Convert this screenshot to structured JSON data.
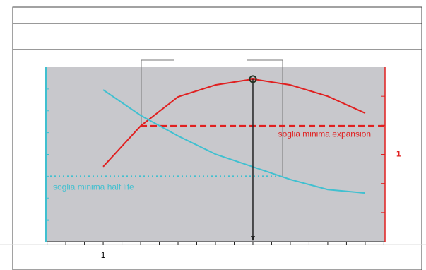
{
  "chart_data": {
    "type": "line",
    "x": [
      1,
      2,
      3,
      4,
      5,
      6,
      7,
      8
    ],
    "xlim": [
      -0.53,
      8.53
    ],
    "xticks": [
      {
        "value": 1,
        "label": "1"
      }
    ],
    "minor_xticks": [
      -0.5,
      0,
      0.5,
      1.5,
      2,
      2.5,
      3,
      3.5,
      4,
      4.5,
      5,
      5.5,
      6,
      6.5,
      7,
      7.5,
      8,
      8.5
    ],
    "ylim": [
      0,
      8
    ],
    "minor_yticks": [
      1,
      2,
      3,
      4,
      5,
      6,
      7
    ],
    "y2lim": [
      -2,
      4
    ],
    "y2ticks": [
      {
        "value": 1,
        "label": "1"
      }
    ],
    "minor_y2ticks": [
      -1,
      0,
      2,
      3
    ],
    "series": [
      {
        "color": "#e02020",
        "axis": "y2",
        "values": [
          0.58,
          1.98,
          2.98,
          3.39,
          3.59,
          3.39,
          3.0,
          2.42
        ]
      },
      {
        "color": "#40c0d0",
        "values": [
          6.96,
          5.79,
          4.85,
          4.01,
          3.43,
          2.85,
          2.39,
          2.23
        ]
      }
    ],
    "thresholds": [
      {
        "label": "soglia  minima expansion",
        "axis": "y2",
        "value": 1.98,
        "from": 2,
        "color": "#e02020"
      },
      {
        "label": "soglia  minima half life",
        "value": 3.0,
        "to": 5.8,
        "color": "#40c0d0"
      }
    ],
    "highlight_x": 5
  }
}
